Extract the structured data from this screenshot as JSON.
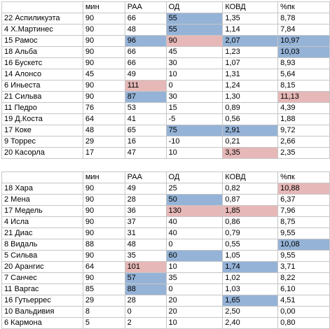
{
  "colors": {
    "blue": "#95b3d7",
    "red": "#e6b8b7",
    "grid": "#c6c6c6"
  },
  "tables": [
    {
      "headers": [
        "",
        "мин",
        "РАА",
        "ОД",
        "КОВД",
        "%пк"
      ],
      "rows": [
        {
          "cells": [
            "22 Аспиликуэта",
            "90",
            "66",
            "55",
            "1,35",
            "8,78"
          ],
          "hl": [
            "",
            "",
            "",
            "blue",
            "",
            ""
          ]
        },
        {
          "cells": [
            "4 Х.Мартинес",
            "90",
            "48",
            "55",
            "1,14",
            "7,84"
          ],
          "hl": [
            "",
            "",
            "",
            "blue",
            "",
            ""
          ]
        },
        {
          "cells": [
            "15 Рамос",
            "90",
            "96",
            "90",
            "2,07",
            "10,97"
          ],
          "hl": [
            "",
            "",
            "blue",
            "red",
            "blue",
            "blue"
          ]
        },
        {
          "cells": [
            "18 Альба",
            "90",
            "66",
            "45",
            "1,23",
            "10,03"
          ],
          "hl": [
            "",
            "",
            "",
            "",
            "",
            "blue"
          ]
        },
        {
          "cells": [
            "16 Бускетс",
            "90",
            "66",
            "30",
            "1,07",
            "8,93"
          ],
          "hl": [
            "",
            "",
            "",
            "",
            "",
            ""
          ]
        },
        {
          "cells": [
            "14 Алонсо",
            "45",
            "49",
            "10",
            "1,31",
            "5,64"
          ],
          "hl": [
            "",
            "",
            "",
            "",
            "",
            ""
          ]
        },
        {
          "cells": [
            "6 Иньеста",
            "90",
            "111",
            "0",
            "1,24",
            "8,15"
          ],
          "hl": [
            "",
            "",
            "red",
            "",
            "",
            ""
          ]
        },
        {
          "cells": [
            "21 Сильва",
            "90",
            "87",
            "30",
            "1,30",
            "11,13"
          ],
          "hl": [
            "",
            "",
            "blue",
            "",
            "",
            "red"
          ]
        },
        {
          "cells": [
            "11 Педро",
            "76",
            "53",
            "15",
            "0,89",
            "4,39"
          ],
          "hl": [
            "",
            "",
            "",
            "",
            "",
            ""
          ]
        },
        {
          "cells": [
            "19 Д.Коста",
            "64",
            "41",
            "-5",
            "0,56",
            "1,88"
          ],
          "hl": [
            "",
            "",
            "",
            "",
            "",
            ""
          ]
        },
        {
          "cells": [
            "17 Коке",
            "48",
            "65",
            "75",
            "2,91",
            "9,72"
          ],
          "hl": [
            "",
            "",
            "",
            "blue",
            "blue",
            ""
          ]
        },
        {
          "cells": [
            "9 Торрес",
            "29",
            "16",
            "-10",
            "0,21",
            "2,66"
          ],
          "hl": [
            "",
            "",
            "",
            "",
            "",
            ""
          ]
        },
        {
          "cells": [
            "20 Касорла",
            "17",
            "47",
            "10",
            "3,35",
            "2,35"
          ],
          "hl": [
            "",
            "",
            "",
            "",
            "red",
            ""
          ]
        }
      ]
    },
    {
      "headers": [
        "",
        "мин",
        "РАА",
        "ОД",
        "КОВД",
        "%пк"
      ],
      "rows": [
        {
          "cells": [
            "18 Хара",
            "90",
            "49",
            "25",
            "0,82",
            "10,88"
          ],
          "hl": [
            "",
            "",
            "",
            "",
            "",
            "red"
          ]
        },
        {
          "cells": [
            "2 Мена",
            "90",
            "28",
            "50",
            "0,87",
            "6,37"
          ],
          "hl": [
            "",
            "",
            "",
            "blue",
            "",
            ""
          ]
        },
        {
          "cells": [
            "17 Медель",
            "90",
            "36",
            "130",
            "1,85",
            "7,96"
          ],
          "hl": [
            "",
            "",
            "",
            "red",
            "red",
            ""
          ]
        },
        {
          "cells": [
            "4 Исла",
            "90",
            "37",
            "40",
            "0,86",
            "8,75"
          ],
          "hl": [
            "",
            "",
            "",
            "",
            "",
            ""
          ]
        },
        {
          "cells": [
            "21 Диас",
            "90",
            "31",
            "40",
            "0,79",
            "9,55"
          ],
          "hl": [
            "",
            "",
            "",
            "",
            "",
            ""
          ]
        },
        {
          "cells": [
            "8 Видаль",
            "88",
            "48",
            "0",
            "0,55",
            "10,08"
          ],
          "hl": [
            "",
            "",
            "",
            "",
            "",
            "blue"
          ]
        },
        {
          "cells": [
            "5 Сильва",
            "90",
            "35",
            "60",
            "1,05",
            "9,55"
          ],
          "hl": [
            "",
            "",
            "",
            "blue",
            "",
            ""
          ]
        },
        {
          "cells": [
            "20 Арангис",
            "64",
            "101",
            "10",
            "1,74",
            "3,71"
          ],
          "hl": [
            "",
            "",
            "red",
            "",
            "blue",
            ""
          ]
        },
        {
          "cells": [
            "7 Санчес",
            "90",
            "57",
            "35",
            "1,02",
            "8,22"
          ],
          "hl": [
            "",
            "",
            "blue",
            "",
            "",
            ""
          ]
        },
        {
          "cells": [
            "11 Варгас",
            "85",
            "88",
            "0",
            "1,03",
            "6,10"
          ],
          "hl": [
            "",
            "",
            "blue",
            "",
            "",
            ""
          ]
        },
        {
          "cells": [
            "16 Гутьеррес",
            "29",
            "28",
            "20",
            "1,65",
            "4,51"
          ],
          "hl": [
            "",
            "",
            "",
            "",
            "blue",
            ""
          ]
        },
        {
          "cells": [
            "10 Вальдивия",
            "8",
            "0",
            "20",
            "2,50",
            "0,00"
          ],
          "hl": [
            "",
            "",
            "",
            "",
            "",
            ""
          ]
        },
        {
          "cells": [
            "6 Кармона",
            "5",
            "2",
            "10",
            "2,40",
            "0,80"
          ],
          "hl": [
            "",
            "",
            "",
            "",
            "",
            ""
          ]
        }
      ]
    }
  ]
}
